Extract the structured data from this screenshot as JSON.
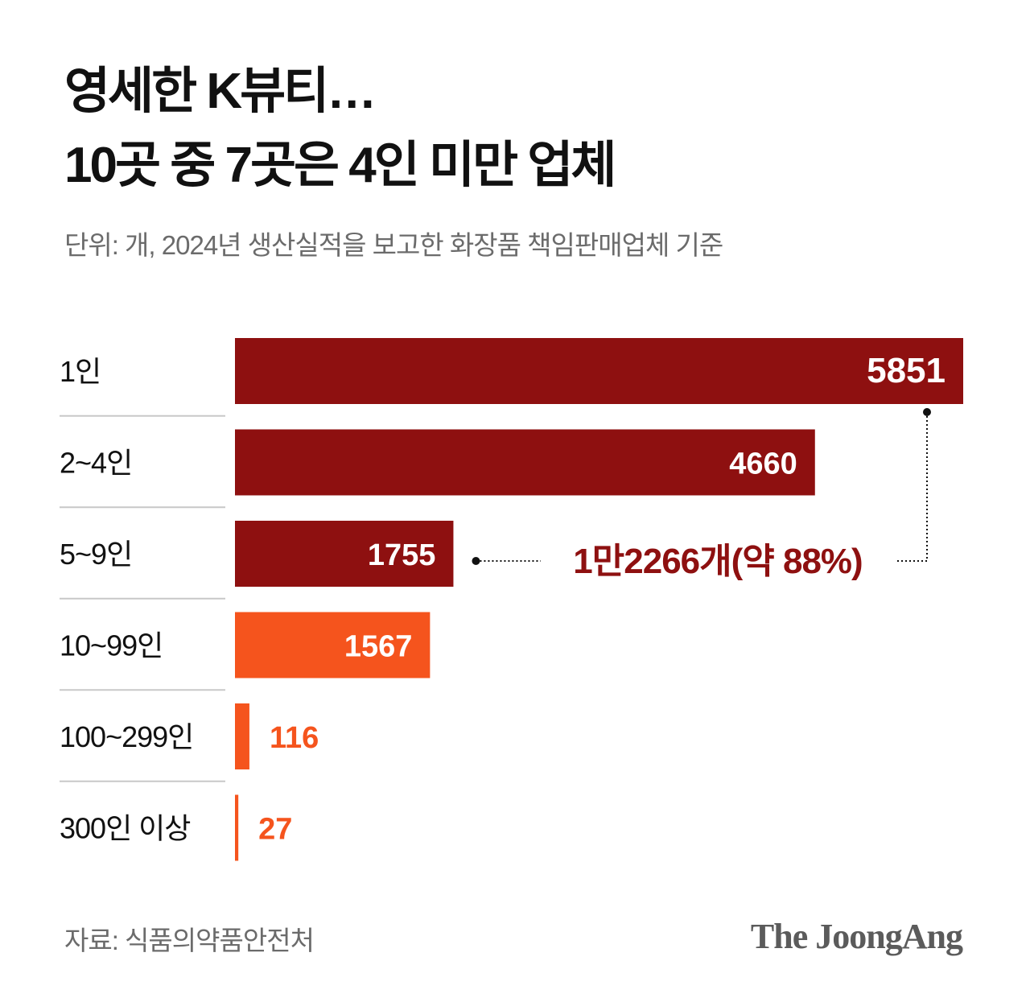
{
  "header": {
    "title_line1": "영세한 K뷰티…",
    "title_line2": "10곳 중 7곳은 4인 미만 업체",
    "subtitle": "단위: 개, 2024년 생산실적을 보고한 화장품 책임판매업체 기준"
  },
  "chart_data": {
    "type": "bar",
    "orientation": "horizontal",
    "categories": [
      "1인",
      "2~4인",
      "5~9인",
      "10~99인",
      "100~299인",
      "300인 이상"
    ],
    "values": [
      5851,
      4660,
      1755,
      1567,
      116,
      27
    ],
    "value_labels": [
      "5851",
      "4660",
      "1755",
      "1567",
      "116",
      "27"
    ],
    "xlim": [
      0,
      5851
    ],
    "grid": false,
    "colors": {
      "dark": "#8e1010",
      "orange": "#f5541d",
      "annotation": "#8e1010",
      "separator": "#c8c8c8"
    },
    "bar_colors": [
      "dark",
      "dark",
      "dark",
      "orange",
      "orange",
      "orange"
    ],
    "annotation": {
      "text": "1만2266개(약 88%)",
      "spans_categories": [
        "1인",
        "2~4인",
        "5~9인"
      ]
    }
  },
  "footer": {
    "source": "자료: 식품의약품안전처",
    "logo_text": "The JoongAng"
  }
}
